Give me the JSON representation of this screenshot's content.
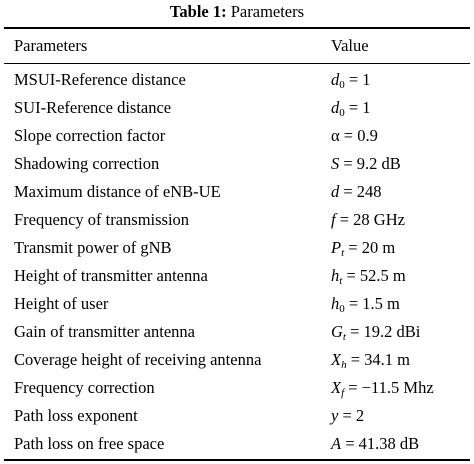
{
  "caption": {
    "label": "Table 1:",
    "title": "Parameters"
  },
  "table": {
    "headers": [
      "Parameters",
      "Value"
    ],
    "rows": [
      {
        "param": "MSUI-Reference distance",
        "symbol": "d",
        "sub": "0",
        "rest": " = 1"
      },
      {
        "param": "SUI-Reference distance",
        "symbol": "d",
        "sub": "0",
        "rest": " = 1"
      },
      {
        "param": "Slope correction factor",
        "symbol": "",
        "sub": "",
        "rest": "α = 0.9"
      },
      {
        "param": "Shadowing correction",
        "symbol": "S",
        "sub": "",
        "rest": " = 9.2 dB"
      },
      {
        "param": "Maximum distance of eNB-UE",
        "symbol": "d",
        "sub": "",
        "rest": " = 248"
      },
      {
        "param": "Frequency of transmission",
        "symbol": "f",
        "sub": "",
        "rest": " = 28 GHz"
      },
      {
        "param": "Transmit power of gNB",
        "symbol": "P",
        "sub": "t",
        "rest": " = 20 m"
      },
      {
        "param": "Height of transmitter antenna",
        "symbol": "h",
        "sub": "t",
        "rest": " = 52.5 m"
      },
      {
        "param": "Height of user",
        "symbol": "h",
        "sub": "0",
        "rest": " = 1.5 m"
      },
      {
        "param": "Gain of transmitter antenna",
        "symbol": "G",
        "sub": "t",
        "rest": " = 19.2 dBi"
      },
      {
        "param": "Coverage height of receiving antenna",
        "symbol": "X",
        "sub": "h",
        "rest": " = 34.1 m"
      },
      {
        "param": "Frequency correction",
        "symbol": "X",
        "sub": "f",
        "rest": " = −11.5 Mhz"
      },
      {
        "param": "Path loss exponent",
        "symbol": "y",
        "sub": "",
        "rest": " = 2"
      },
      {
        "param": "Path loss on free space",
        "symbol": "A",
        "sub": "",
        "rest": " = 41.38 dB"
      }
    ]
  }
}
